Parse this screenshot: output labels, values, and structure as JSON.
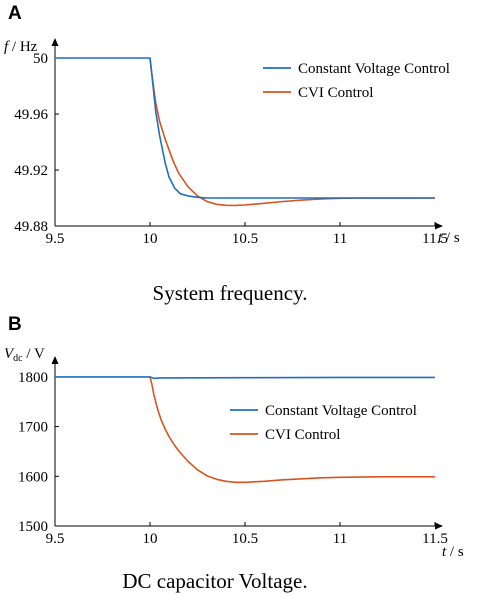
{
  "charts": [
    {
      "panel_label": "A",
      "caption": "System frequency.",
      "chart_data": {
        "type": "line",
        "ylabel_var": "f",
        "ylabel_unit": " / Hz",
        "xlabel_var": "t",
        "xlabel_unit": " / s",
        "xlim": [
          9.5,
          11.5
        ],
        "ylim": [
          49.88,
          50.01
        ],
        "xticks": [
          9.5,
          10,
          10.5,
          11,
          11.5
        ],
        "xtick_labels": [
          "9.5",
          "10",
          "10.5",
          "11",
          "11.5"
        ],
        "yticks": [
          49.88,
          49.92,
          49.96,
          50
        ],
        "ytick_labels": [
          "49.88",
          "49.92",
          "49.96",
          "50"
        ],
        "grid": false,
        "legend_position": "top-right",
        "series": [
          {
            "name": "Constant Voltage Control",
            "color": "#1f6fbf",
            "x": [
              9.5,
              9.9,
              10.0,
              10.01,
              10.03,
              10.05,
              10.08,
              10.1,
              10.13,
              10.16,
              10.2,
              10.25,
              10.3,
              10.4,
              10.5,
              10.7,
              11.0,
              11.5
            ],
            "y": [
              50.0,
              50.0,
              50.0,
              49.988,
              49.962,
              49.945,
              49.925,
              49.915,
              49.907,
              49.903,
              49.9015,
              49.9005,
              49.9,
              49.9,
              49.9,
              49.9,
              49.9,
              49.9
            ]
          },
          {
            "name": "CVI Control",
            "color": "#d9541e",
            "x": [
              10.0,
              10.01,
              10.03,
              10.05,
              10.08,
              10.12,
              10.15,
              10.2,
              10.25,
              10.3,
              10.35,
              10.4,
              10.45,
              10.5,
              10.6,
              10.7,
              10.8,
              10.9,
              11.0,
              11.1,
              11.2,
              11.3,
              11.5
            ],
            "y": [
              50.0,
              49.988,
              49.968,
              49.955,
              49.942,
              49.927,
              49.918,
              49.908,
              49.9015,
              49.8975,
              49.8955,
              49.8948,
              49.8947,
              49.895,
              49.8962,
              49.8975,
              49.8985,
              49.8993,
              49.8998,
              49.9,
              49.9,
              49.9,
              49.9
            ]
          }
        ]
      }
    },
    {
      "panel_label": "B",
      "caption": "DC capacitor Voltage.",
      "chart_data": {
        "type": "line",
        "ylabel_var": "V",
        "ylabel_sub": "dc",
        "ylabel_unit": " / V",
        "xlabel_var": "t",
        "xlabel_unit": " / s",
        "xlim": [
          9.5,
          11.5
        ],
        "ylim": [
          1500,
          1830
        ],
        "xticks": [
          9.5,
          10,
          10.5,
          11,
          11.5
        ],
        "xtick_labels": [
          "9.5",
          "10",
          "10.5",
          "11",
          "11.5"
        ],
        "yticks": [
          1500,
          1600,
          1700,
          1800
        ],
        "ytick_labels": [
          "1500",
          "1600",
          "1700",
          "1800"
        ],
        "grid": false,
        "legend_position": "center-right",
        "series": [
          {
            "name": "Constant Voltage Control",
            "color": "#1f6fbf",
            "x": [
              9.5,
              10.0,
              10.02,
              10.05,
              10.5,
              11.0,
              11.5
            ],
            "y": [
              1800,
              1800,
              1797,
              1798,
              1798.5,
              1799,
              1799
            ]
          },
          {
            "name": "CVI Control",
            "color": "#d9541e",
            "x": [
              10.0,
              10.01,
              10.02,
              10.04,
              10.06,
              10.08,
              10.1,
              10.13,
              10.16,
              10.2,
              10.25,
              10.3,
              10.35,
              10.4,
              10.45,
              10.5,
              10.6,
              10.7,
              10.8,
              10.9,
              11.0,
              11.2,
              11.5
            ],
            "y": [
              1800,
              1785,
              1765,
              1735,
              1712,
              1695,
              1680,
              1662,
              1647,
              1630,
              1613,
              1601,
              1594,
              1590,
              1588,
              1588,
              1590,
              1593,
              1595,
              1597,
              1598,
              1599,
              1599
            ]
          }
        ]
      }
    }
  ]
}
